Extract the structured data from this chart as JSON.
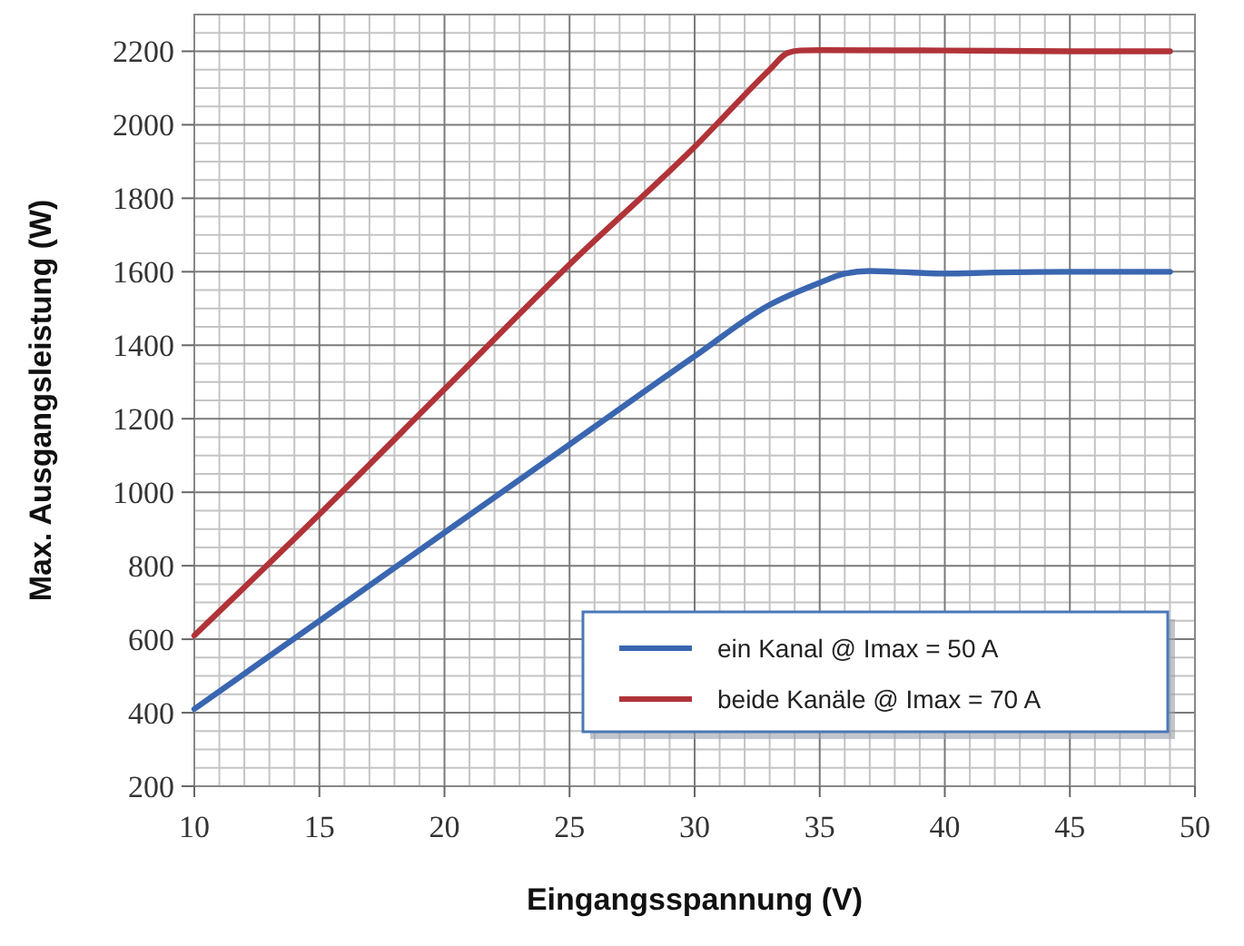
{
  "chart_data": {
    "type": "line",
    "xlabel": "Eingangsspannung (V)",
    "ylabel": "Max. Ausgangsleistung (W)",
    "xlim": [
      10,
      50
    ],
    "xticks": [
      10,
      15,
      20,
      25,
      30,
      35,
      40,
      45,
      50
    ],
    "ylim": [
      200,
      2300
    ],
    "yticks": [
      200,
      400,
      600,
      800,
      1000,
      1200,
      1400,
      1600,
      1800,
      2000,
      2200
    ],
    "grid": true,
    "legend": "bottom right",
    "line_style": "solid",
    "marker": "none",
    "series": [
      {
        "name": "ein Kanal @ Imax = 50 A",
        "color": "#3a66b0",
        "x": [
          10,
          15,
          20,
          25,
          30,
          33,
          35,
          36,
          37,
          38,
          40,
          42,
          45,
          49
        ],
        "values": [
          410,
          650,
          890,
          1130,
          1370,
          1510,
          1570,
          1595,
          1602,
          1600,
          1595,
          1598,
          1600,
          1600
        ]
      },
      {
        "name": "beide Kanäle @ Imax = 70 A",
        "color": "#b03338",
        "x": [
          10,
          15,
          20,
          25,
          30,
          33,
          33.7,
          34.2,
          35,
          40,
          45,
          49
        ],
        "values": [
          610,
          940,
          1280,
          1620,
          1940,
          2150,
          2195,
          2202,
          2203,
          2202,
          2200,
          2200
        ]
      }
    ]
  }
}
